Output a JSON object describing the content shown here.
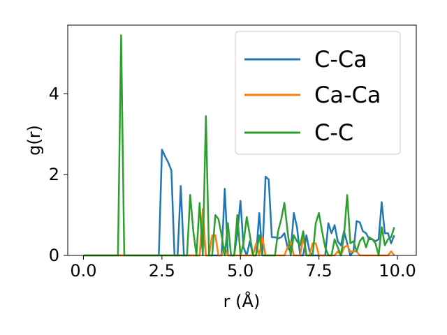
{
  "chart_data": {
    "type": "line",
    "title": "",
    "xlabel": "r (Å)",
    "ylabel": "g(r)",
    "xlim": [
      -0.5,
      10.6
    ],
    "ylim": [
      0,
      5.7
    ],
    "xticks": [
      0.0,
      2.5,
      5.0,
      7.5,
      10.0
    ],
    "xtick_labels": [
      "0.0",
      "2.5",
      "5.0",
      "7.5",
      "10.0"
    ],
    "yticks": [
      0,
      2,
      4
    ],
    "ytick_labels": [
      "0",
      "2",
      "4"
    ],
    "grid": false,
    "legend_position": "top-right",
    "series": [
      {
        "name": "C-Ca",
        "color": "#1f77b4",
        "x": [
          0.0,
          2.4,
          2.5,
          2.6,
          2.7,
          2.8,
          2.9,
          3.0,
          3.1,
          3.2,
          3.3,
          3.4,
          3.5,
          3.6,
          3.7,
          3.8,
          3.9,
          4.0,
          4.1,
          4.2,
          4.3,
          4.4,
          4.5,
          4.6,
          4.7,
          4.8,
          4.9,
          5.0,
          5.1,
          5.2,
          5.3,
          5.4,
          5.5,
          5.6,
          5.7,
          5.8,
          5.9,
          6.0,
          6.1,
          6.2,
          6.3,
          6.4,
          6.5,
          6.6,
          6.7,
          6.8,
          6.9,
          7.0,
          7.1,
          7.2,
          7.3,
          7.4,
          7.5,
          7.6,
          7.7,
          7.8,
          7.9,
          8.0,
          8.1,
          8.2,
          8.3,
          8.4,
          8.5,
          8.6,
          8.7,
          8.8,
          8.9,
          9.0,
          9.1,
          9.2,
          9.3,
          9.4,
          9.5,
          9.6,
          9.7,
          9.8,
          9.9
        ],
        "y": [
          0.0,
          0.0,
          2.62,
          2.45,
          2.3,
          2.1,
          0.0,
          0.0,
          1.72,
          0.0,
          0.0,
          0.0,
          0.0,
          0.0,
          0.0,
          0.8,
          0.0,
          0.0,
          0.0,
          0.0,
          0.0,
          0.0,
          1.65,
          0.0,
          0.0,
          0.0,
          0.55,
          1.35,
          0.2,
          0.0,
          0.35,
          0.0,
          0.0,
          1.05,
          0.0,
          1.95,
          1.88,
          0.45,
          0.45,
          0.42,
          0.45,
          0.55,
          0.2,
          0.1,
          1.05,
          0.7,
          0.0,
          0.0,
          0.5,
          0.1,
          0.0,
          0.0,
          0.0,
          0.0,
          0.0,
          0.8,
          0.55,
          0.75,
          0.35,
          0.25,
          0.6,
          0.3,
          0.0,
          0.1,
          0.85,
          0.82,
          0.6,
          0.55,
          0.4,
          0.4,
          0.35,
          0.4,
          1.32,
          0.55,
          0.55,
          0.3,
          0.5
        ]
      },
      {
        "name": "Ca-Ca",
        "color": "#ff7f0e",
        "x": [
          0.0,
          3.5,
          3.6,
          3.7,
          3.8,
          3.9,
          4.0,
          4.1,
          4.2,
          4.3,
          4.4,
          4.5,
          4.6,
          4.7,
          4.8,
          4.9,
          5.0,
          5.1,
          5.2,
          5.3,
          5.4,
          5.5,
          5.6,
          5.7,
          5.8,
          5.9,
          6.0,
          6.1,
          6.2,
          6.3,
          6.4,
          6.5,
          6.6,
          6.7,
          6.8,
          6.9,
          7.0,
          7.1,
          7.2,
          7.3,
          7.4,
          7.5,
          7.6,
          7.7,
          7.8,
          7.9,
          8.0,
          8.1,
          8.2,
          8.3,
          8.4,
          8.5,
          8.6,
          8.7,
          8.8,
          8.9,
          9.0,
          9.1,
          9.2,
          9.3,
          9.4,
          9.5,
          9.6,
          9.7,
          9.8,
          9.9
        ],
        "y": [
          0.0,
          0.0,
          0.0,
          0.0,
          1.15,
          0.0,
          0.0,
          0.5,
          0.5,
          0.0,
          0.0,
          0.2,
          0.0,
          0.0,
          0.0,
          0.0,
          0.0,
          0.0,
          0.0,
          0.0,
          0.0,
          0.3,
          0.0,
          0.45,
          0.0,
          0.0,
          0.0,
          0.0,
          0.0,
          0.0,
          0.0,
          0.2,
          0.35,
          0.0,
          0.0,
          0.0,
          0.45,
          0.0,
          0.0,
          0.3,
          0.3,
          0.0,
          0.0,
          0.0,
          0.0,
          0.0,
          0.0,
          0.1,
          0.0,
          0.2,
          0.25,
          0.1,
          0.1,
          0.1,
          0.0,
          0.0,
          0.0,
          0.0,
          0.0,
          0.0,
          0.0,
          0.0,
          0.0,
          0.0,
          0.1,
          0.0
        ]
      },
      {
        "name": "C-C",
        "color": "#2ca02c",
        "x": [
          0.0,
          1.1,
          1.2,
          1.3,
          1.4,
          3.3,
          3.4,
          3.5,
          3.6,
          3.7,
          3.8,
          3.9,
          4.0,
          4.1,
          4.2,
          4.3,
          4.4,
          4.5,
          4.6,
          4.7,
          4.8,
          4.9,
          5.0,
          5.1,
          5.2,
          5.3,
          5.4,
          5.5,
          5.6,
          5.7,
          5.8,
          5.9,
          6.0,
          6.1,
          6.2,
          6.3,
          6.4,
          6.5,
          6.6,
          6.7,
          6.8,
          6.9,
          7.0,
          7.1,
          7.2,
          7.3,
          7.4,
          7.5,
          7.6,
          7.7,
          7.8,
          7.9,
          8.0,
          8.1,
          8.2,
          8.3,
          8.4,
          8.5,
          8.6,
          8.7,
          8.8,
          8.9,
          9.0,
          9.1,
          9.2,
          9.3,
          9.4,
          9.5,
          9.6,
          9.7,
          9.8,
          9.9
        ],
        "y": [
          0.0,
          0.0,
          5.45,
          0.0,
          0.0,
          0.0,
          1.5,
          0.6,
          0.0,
          1.3,
          0.0,
          3.45,
          0.0,
          0.0,
          1.0,
          0.9,
          0.5,
          0.0,
          0.8,
          0.0,
          0.0,
          1.0,
          0.0,
          0.3,
          0.95,
          0.5,
          0.0,
          0.0,
          0.5,
          0.0,
          0.0,
          0.0,
          0.0,
          0.0,
          0.6,
          0.9,
          1.3,
          0.6,
          0.0,
          0.5,
          0.35,
          0.25,
          0.6,
          0.0,
          0.0,
          0.0,
          0.8,
          1.05,
          0.6,
          0.2,
          0.0,
          0.0,
          0.4,
          0.2,
          0.0,
          0.5,
          1.5,
          0.3,
          0.35,
          0.1,
          0.35,
          0.45,
          0.2,
          0.45,
          0.4,
          0.3,
          0.0,
          0.7,
          0.25,
          0.4,
          0.45,
          0.7
        ]
      }
    ]
  }
}
